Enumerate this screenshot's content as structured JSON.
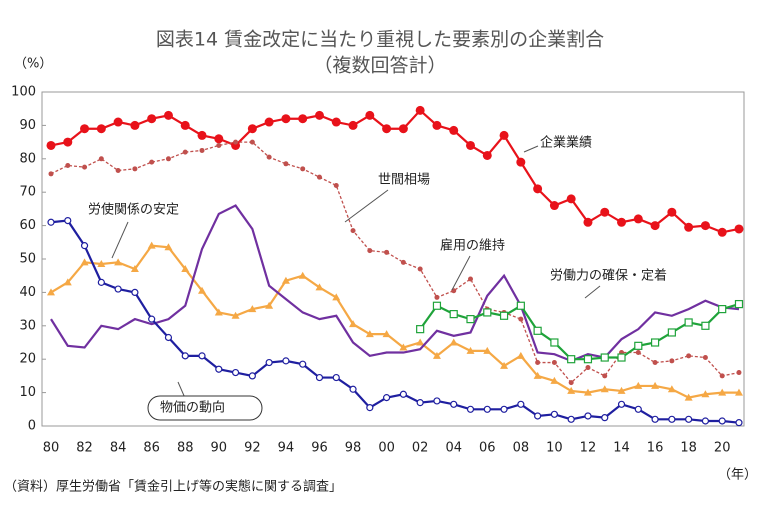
{
  "chart_data": {
    "type": "line",
    "title": "図表14 賃金改定に当たり重視した要素別の企業割合",
    "subtitle": "（複数回答計）",
    "y_label": "（%）",
    "x_label": "（年）",
    "source": "（資料）厚生労働省「賃金引上げ等の実態に関する調査」",
    "categories": [
      "80",
      null,
      "82",
      null,
      "84",
      null,
      "86",
      null,
      "88",
      null,
      "90",
      null,
      "92",
      null,
      "94",
      null,
      "96",
      null,
      "98",
      null,
      "00",
      null,
      "02",
      null,
      "04",
      null,
      "06",
      null,
      "08",
      null,
      "10",
      null,
      "12",
      null,
      "14",
      null,
      "16",
      null,
      "18",
      null,
      "20",
      null
    ],
    "ylim": [
      0,
      100
    ],
    "yticks": [
      0,
      10,
      20,
      30,
      40,
      50,
      60,
      70,
      80,
      90,
      100
    ],
    "grid": false,
    "series": [
      {
        "name": "企業業績",
        "color": "#e8121a",
        "marker": "filled-circle",
        "values": [
          84,
          85,
          89,
          89,
          91,
          90,
          92,
          93,
          90,
          87,
          86,
          84,
          89,
          91,
          92,
          92,
          93,
          91,
          90,
          93,
          89,
          89,
          94.5,
          90,
          88.5,
          84,
          81,
          87,
          79,
          71,
          66,
          68,
          61,
          64,
          61,
          62,
          60,
          64,
          59.5,
          60,
          58,
          59
        ]
      },
      {
        "name": "世間相場",
        "color": "#c0504d",
        "marker": "dot",
        "style": "dotted",
        "values": [
          75.5,
          78,
          77.5,
          80,
          76.5,
          77,
          79,
          80,
          82,
          82.5,
          84,
          85,
          85,
          80.5,
          78.5,
          77,
          74.5,
          72,
          58.5,
          52.5,
          52,
          49,
          47,
          38.5,
          40.5,
          44,
          35,
          34,
          32,
          19,
          19,
          13,
          17.5,
          15,
          22,
          22,
          19,
          19.5,
          21,
          20.5,
          15,
          16
        ]
      },
      {
        "name": "労使関係の安定",
        "color": "#f5a845",
        "marker": "triangle",
        "values": [
          40,
          43,
          49,
          48.5,
          49,
          47,
          54,
          53.5,
          47,
          40.5,
          34,
          33,
          35,
          36,
          43.5,
          45,
          41.5,
          38.5,
          30.5,
          27.5,
          27.5,
          23.5,
          25,
          21,
          25,
          22.5,
          22.5,
          18,
          21,
          15,
          13.5,
          10.5,
          10,
          11,
          10.5,
          12,
          12,
          11,
          8.5,
          9.5,
          10,
          10
        ]
      },
      {
        "name": "労働力の確保・定着",
        "color": "#7030a0",
        "marker": "none",
        "values": [
          32,
          24,
          23.5,
          30,
          29,
          32,
          30.5,
          32,
          36,
          53,
          63.5,
          66,
          59,
          42,
          38,
          34,
          32,
          33,
          25,
          21,
          22,
          22,
          23,
          28.5,
          27,
          28,
          39,
          45,
          36,
          22,
          21.5,
          19.5,
          21.5,
          20.5,
          26,
          29,
          34,
          33,
          35,
          37.5,
          35.5,
          35
        ]
      },
      {
        "name": "雇用の維持",
        "color": "#1fa33a",
        "marker": "square",
        "values": [
          null,
          null,
          null,
          null,
          null,
          null,
          null,
          null,
          null,
          null,
          null,
          null,
          null,
          null,
          null,
          null,
          null,
          null,
          null,
          null,
          null,
          null,
          29,
          36,
          33.5,
          32,
          34,
          33,
          36,
          28.5,
          25,
          20,
          20,
          20.5,
          20.5,
          24,
          25,
          28,
          31,
          30,
          35,
          36.5
        ]
      },
      {
        "name": "物価の動向",
        "color": "#1f1fa0",
        "marker": "circle",
        "values": [
          61,
          61.5,
          54,
          43,
          41,
          40,
          32,
          26.5,
          21,
          21,
          17,
          16,
          15,
          19,
          19.5,
          18.5,
          14.5,
          14.5,
          11,
          5.5,
          8.5,
          9.5,
          7,
          7.5,
          6.5,
          5,
          5,
          5,
          6.5,
          3,
          3.5,
          2,
          3,
          2.5,
          6.5,
          5,
          2,
          2,
          2,
          1.5,
          1.5,
          1
        ]
      }
    ]
  }
}
